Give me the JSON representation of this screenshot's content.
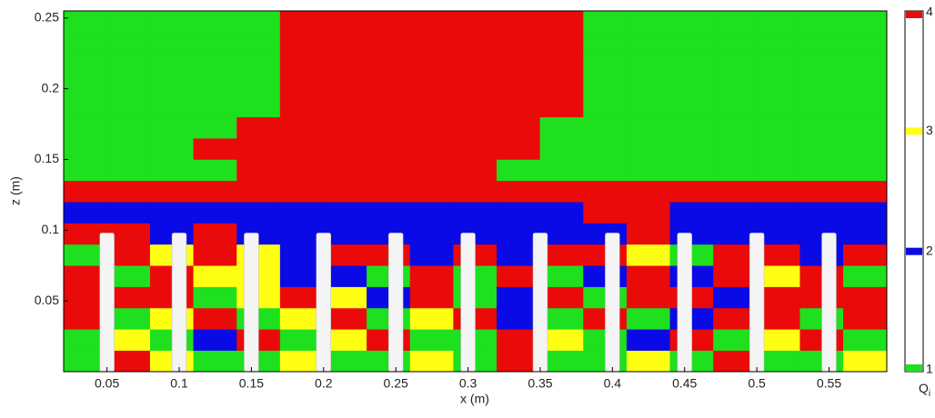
{
  "chart_data": {
    "type": "heatmap",
    "xlabel": "x (m)",
    "ylabel": "z (m)",
    "xlim": [
      0.02,
      0.59
    ],
    "ylim": [
      0,
      0.255
    ],
    "xticks": [
      0.05,
      0.1,
      0.15,
      0.2,
      0.25,
      0.3,
      0.35,
      0.4,
      0.45,
      0.5,
      0.55
    ],
    "yticks": [
      0.05,
      0.1,
      0.15,
      0.2,
      0.25
    ],
    "x_edges": [
      0.02,
      0.05,
      0.08,
      0.11,
      0.14,
      0.17,
      0.2,
      0.23,
      0.26,
      0.29,
      0.32,
      0.35,
      0.38,
      0.41,
      0.44,
      0.47,
      0.5,
      0.53,
      0.56,
      0.59
    ],
    "z_edges": [
      0,
      0.015,
      0.03,
      0.045,
      0.06,
      0.075,
      0.09,
      0.105,
      0.12,
      0.135,
      0.15,
      0.165,
      0.18,
      0.195,
      0.21,
      0.225,
      0.24,
      0.255
    ],
    "values": [
      [
        1,
        4,
        3,
        1,
        1,
        3,
        1,
        1,
        3,
        1,
        4,
        1,
        1,
        3,
        1,
        4,
        1,
        1,
        3
      ],
      [
        1,
        3,
        1,
        2,
        4,
        1,
        3,
        4,
        1,
        1,
        4,
        3,
        1,
        2,
        4,
        1,
        3,
        4,
        1
      ],
      [
        4,
        1,
        3,
        4,
        1,
        3,
        4,
        1,
        3,
        4,
        2,
        1,
        4,
        1,
        2,
        4,
        4,
        1,
        4
      ],
      [
        4,
        4,
        4,
        1,
        3,
        4,
        3,
        2,
        4,
        1,
        2,
        4,
        1,
        4,
        4,
        2,
        4,
        4,
        4
      ],
      [
        4,
        1,
        4,
        3,
        3,
        2,
        2,
        1,
        4,
        1,
        4,
        1,
        2,
        4,
        2,
        4,
        3,
        4,
        1
      ],
      [
        1,
        4,
        3,
        4,
        3,
        2,
        4,
        4,
        2,
        4,
        2,
        4,
        4,
        3,
        1,
        4,
        4,
        2,
        4
      ],
      [
        4,
        4,
        2,
        4,
        2,
        2,
        2,
        2,
        2,
        2,
        2,
        2,
        2,
        4,
        2,
        2,
        2,
        2,
        2
      ],
      [
        2,
        2,
        2,
        2,
        2,
        2,
        2,
        2,
        2,
        2,
        2,
        2,
        4,
        4,
        2,
        2,
        2,
        2,
        2
      ],
      [
        4,
        4,
        4,
        4,
        4,
        4,
        4,
        4,
        4,
        4,
        4,
        4,
        4,
        4,
        4,
        4,
        4,
        4,
        4
      ],
      [
        1,
        1,
        1,
        1,
        4,
        4,
        4,
        4,
        4,
        4,
        1,
        1,
        1,
        1,
        1,
        1,
        1,
        1,
        1
      ],
      [
        1,
        1,
        1,
        4,
        4,
        4,
        4,
        4,
        4,
        4,
        4,
        1,
        1,
        1,
        1,
        1,
        1,
        1,
        1
      ],
      [
        1,
        1,
        1,
        1,
        4,
        4,
        4,
        4,
        4,
        4,
        4,
        1,
        1,
        1,
        1,
        1,
        1,
        1,
        1
      ],
      [
        1,
        1,
        1,
        1,
        1,
        4,
        4,
        4,
        4,
        4,
        4,
        4,
        1,
        1,
        1,
        1,
        1,
        1,
        1
      ],
      [
        1,
        1,
        1,
        1,
        1,
        4,
        4,
        4,
        4,
        4,
        4,
        4,
        1,
        1,
        1,
        1,
        1,
        1,
        1
      ],
      [
        1,
        1,
        1,
        1,
        1,
        4,
        4,
        4,
        4,
        4,
        4,
        4,
        1,
        1,
        1,
        1,
        1,
        1,
        1
      ],
      [
        1,
        1,
        1,
        1,
        1,
        4,
        4,
        4,
        4,
        4,
        4,
        4,
        1,
        1,
        1,
        1,
        1,
        1,
        1
      ],
      [
        1,
        1,
        1,
        1,
        1,
        4,
        4,
        4,
        4,
        4,
        4,
        4,
        1,
        1,
        1,
        1,
        1,
        1,
        1
      ]
    ],
    "colors": [
      "#1ee01e",
      "#0a0ae6",
      "#ffff14",
      "#eb0a0a"
    ],
    "rods": {
      "x": [
        0.05,
        0.1,
        0.15,
        0.2,
        0.25,
        0.3,
        0.35,
        0.4,
        0.45,
        0.5,
        0.55
      ],
      "top": 0.098,
      "width": 0.005
    },
    "colorbar": {
      "lim": [
        1,
        4
      ],
      "ticks": [
        1,
        2,
        3,
        4
      ],
      "label": "Q",
      "label_sub": "i"
    }
  }
}
